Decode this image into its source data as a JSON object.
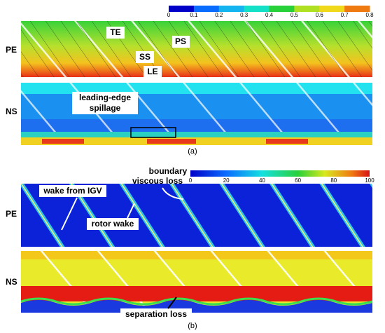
{
  "figure": {
    "panel_a": {
      "colorbar_ticks": [
        0,
        0.1,
        0.2,
        0.3,
        0.4,
        0.5,
        0.6,
        0.7,
        0.8
      ],
      "rows": [
        "PE",
        "NS"
      ],
      "annotations": {
        "te": "TE",
        "ps": "PS",
        "ss": "SS",
        "le": "LE",
        "spillage": [
          "leading-edge",
          "spillage"
        ]
      },
      "caption": "(a)"
    },
    "panel_b": {
      "colorbar_ticks": [
        0,
        20,
        40,
        60,
        80,
        100
      ],
      "rows": [
        "PE",
        "NS"
      ],
      "annotations": {
        "boundary": [
          "boundary",
          "viscous loss"
        ],
        "igv": "wake from IGV",
        "rotor": "rotor wake",
        "separation": "separation loss"
      },
      "caption": "(b)"
    }
  }
}
